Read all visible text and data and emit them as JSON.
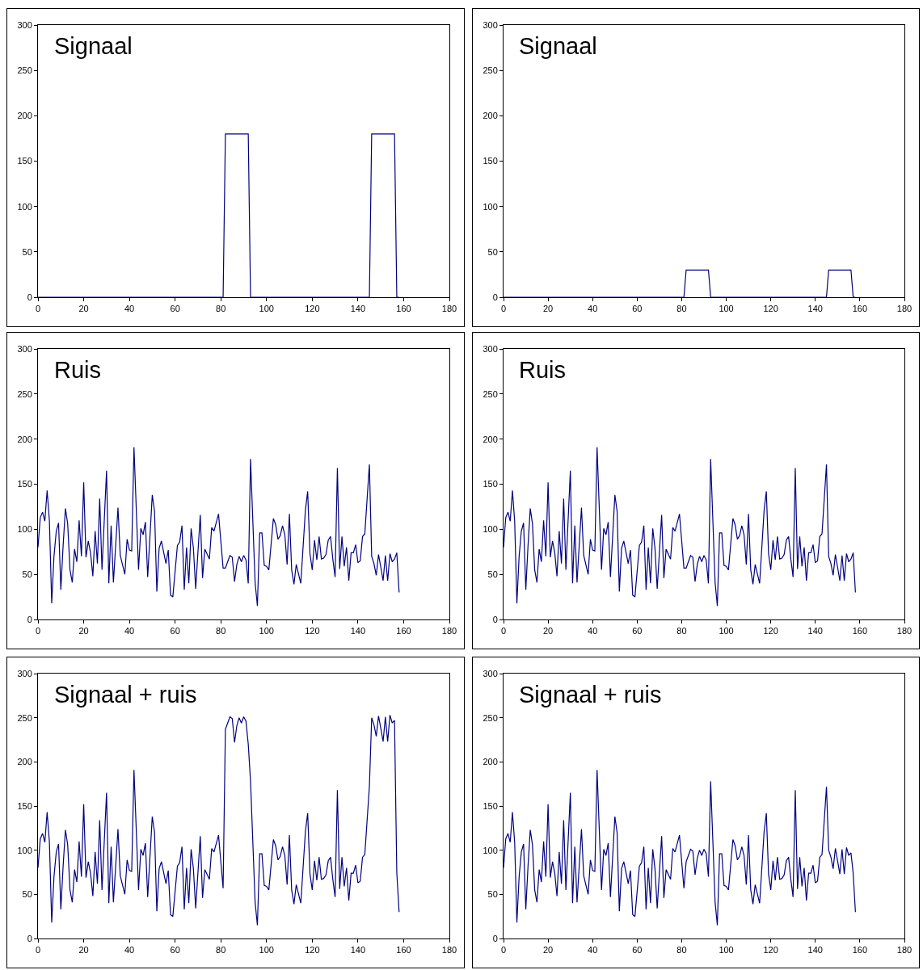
{
  "chart_data": [
    {
      "type": "line",
      "title": "Signaal",
      "color": "#000080",
      "marker": "none",
      "line_style": "solid",
      "grid": false,
      "xlim": [
        0,
        180
      ],
      "xticks": [
        0,
        20,
        40,
        60,
        80,
        100,
        120,
        140,
        160,
        180
      ],
      "ylim": [
        0,
        300
      ],
      "yticks": [
        0,
        50,
        100,
        150,
        200,
        250,
        300
      ],
      "x": [
        0,
        81,
        82,
        92,
        93,
        145,
        146,
        156,
        157,
        158
      ],
      "values": [
        0,
        0,
        180,
        180,
        0,
        0,
        180,
        180,
        0,
        0
      ]
    },
    {
      "type": "line",
      "title": "Signaal",
      "color": "#000080",
      "marker": "none",
      "line_style": "solid",
      "grid": false,
      "xlim": [
        0,
        180
      ],
      "xticks": [
        0,
        20,
        40,
        60,
        80,
        100,
        120,
        140,
        160,
        180
      ],
      "ylim": [
        0,
        300
      ],
      "yticks": [
        0,
        50,
        100,
        150,
        200,
        250,
        300
      ],
      "x": [
        0,
        81,
        82,
        92,
        93,
        145,
        146,
        156,
        157,
        158
      ],
      "values": [
        0,
        0,
        30,
        30,
        0,
        0,
        30,
        30,
        0,
        0
      ]
    },
    {
      "type": "line",
      "title": "Ruis",
      "color": "#000080",
      "marker": "none",
      "line_style": "solid",
      "grid": false,
      "xlim": [
        0,
        180
      ],
      "xticks": [
        0,
        20,
        40,
        60,
        80,
        100,
        120,
        140,
        160,
        180
      ],
      "ylim": [
        0,
        300
      ],
      "yticks": [
        0,
        50,
        100,
        150,
        200,
        250,
        300
      ],
      "x": [
        0,
        1,
        2,
        3,
        4,
        5,
        6,
        7,
        8,
        9,
        10,
        11,
        12,
        13,
        14,
        15,
        16,
        17,
        18,
        19,
        20,
        21,
        22,
        23,
        24,
        25,
        26,
        27,
        28,
        30,
        31,
        32,
        33,
        35,
        36,
        38,
        39,
        40,
        41,
        42,
        44,
        45,
        46,
        47,
        48,
        50,
        51,
        52,
        53,
        54,
        56,
        57,
        58,
        59,
        61,
        62,
        63,
        64,
        65,
        66,
        67,
        68,
        69,
        71,
        72,
        73,
        75,
        76,
        77,
        79,
        81,
        82,
        83,
        84,
        85,
        86,
        87,
        88,
        89,
        90,
        91,
        92,
        93,
        95,
        96,
        97,
        98,
        99,
        100,
        101,
        103,
        104,
        105,
        106,
        107,
        108,
        109,
        110,
        111,
        112,
        113,
        115,
        117,
        118,
        119,
        120,
        121,
        122,
        123,
        124,
        125,
        126,
        127,
        128,
        129,
        130,
        131,
        132,
        133,
        134,
        135,
        136,
        137,
        138,
        139,
        140,
        141,
        142,
        143,
        145,
        146,
        147,
        148,
        149,
        150,
        151,
        152,
        153,
        154,
        155,
        156,
        157,
        158
      ],
      "values": [
        80,
        113,
        119,
        109,
        143,
        109,
        18,
        70,
        98,
        107,
        33,
        82,
        123,
        106,
        55,
        41,
        78,
        64,
        110,
        70,
        152,
        69,
        87,
        74,
        48,
        98,
        62,
        134,
        55,
        165,
        40,
        104,
        41,
        124,
        71,
        50,
        89,
        77,
        76,
        191,
        55,
        101,
        94,
        108,
        47,
        138,
        120,
        31,
        79,
        87,
        62,
        77,
        27,
        25,
        82,
        86,
        104,
        33,
        80,
        40,
        101,
        79,
        34,
        116,
        46,
        78,
        67,
        102,
        98,
        117,
        57,
        57,
        64,
        71,
        69,
        42,
        61,
        70,
        64,
        71,
        66,
        40,
        178,
        41,
        15,
        96,
        96,
        60,
        59,
        55,
        112,
        105,
        89,
        93,
        104,
        94,
        61,
        117,
        55,
        39,
        61,
        40,
        121,
        142,
        73,
        55,
        88,
        66,
        92,
        67,
        68,
        72,
        88,
        92,
        67,
        47,
        168,
        56,
        92,
        59,
        80,
        43,
        74,
        74,
        83,
        63,
        65,
        92,
        95,
        172,
        70,
        62,
        49,
        72,
        58,
        43,
        71,
        43,
        73,
        64,
        67,
        74,
        30
      ]
    },
    {
      "type": "line",
      "title": "Ruis",
      "color": "#000080",
      "marker": "none",
      "line_style": "solid",
      "grid": false,
      "xlim": [
        0,
        180
      ],
      "xticks": [
        0,
        20,
        40,
        60,
        80,
        100,
        120,
        140,
        160,
        180
      ],
      "ylim": [
        0,
        300
      ],
      "yticks": [
        0,
        50,
        100,
        150,
        200,
        250,
        300
      ],
      "x": [
        0,
        1,
        2,
        3,
        4,
        5,
        6,
        7,
        8,
        9,
        10,
        11,
        12,
        13,
        14,
        15,
        16,
        17,
        18,
        19,
        20,
        21,
        22,
        23,
        24,
        25,
        26,
        27,
        28,
        30,
        31,
        32,
        33,
        35,
        36,
        38,
        39,
        40,
        41,
        42,
        44,
        45,
        46,
        47,
        48,
        50,
        51,
        52,
        53,
        54,
        56,
        57,
        58,
        59,
        61,
        62,
        63,
        64,
        65,
        66,
        67,
        68,
        69,
        71,
        72,
        73,
        75,
        76,
        77,
        79,
        81,
        82,
        83,
        84,
        85,
        86,
        87,
        88,
        89,
        90,
        91,
        92,
        93,
        95,
        96,
        97,
        98,
        99,
        100,
        101,
        103,
        104,
        105,
        106,
        107,
        108,
        109,
        110,
        111,
        112,
        113,
        115,
        117,
        118,
        119,
        120,
        121,
        122,
        123,
        124,
        125,
        126,
        127,
        128,
        129,
        130,
        131,
        132,
        133,
        134,
        135,
        136,
        137,
        138,
        139,
        140,
        141,
        142,
        143,
        145,
        146,
        147,
        148,
        149,
        150,
        151,
        152,
        153,
        154,
        155,
        156,
        157,
        158
      ],
      "values": [
        80,
        113,
        119,
        109,
        143,
        109,
        18,
        70,
        98,
        107,
        33,
        82,
        123,
        106,
        55,
        41,
        78,
        64,
        110,
        70,
        152,
        69,
        87,
        74,
        48,
        98,
        62,
        134,
        55,
        165,
        40,
        104,
        41,
        124,
        71,
        50,
        89,
        77,
        76,
        191,
        55,
        101,
        94,
        108,
        47,
        138,
        120,
        31,
        79,
        87,
        62,
        77,
        27,
        25,
        82,
        86,
        104,
        33,
        80,
        40,
        101,
        79,
        34,
        116,
        46,
        78,
        67,
        102,
        98,
        117,
        57,
        57,
        64,
        71,
        69,
        42,
        61,
        70,
        64,
        71,
        66,
        40,
        178,
        41,
        15,
        96,
        96,
        60,
        59,
        55,
        112,
        105,
        89,
        93,
        104,
        94,
        61,
        117,
        55,
        39,
        61,
        40,
        121,
        142,
        73,
        55,
        88,
        66,
        92,
        67,
        68,
        72,
        88,
        92,
        67,
        47,
        168,
        56,
        92,
        59,
        80,
        43,
        74,
        74,
        83,
        63,
        65,
        92,
        95,
        172,
        70,
        62,
        49,
        72,
        58,
        43,
        71,
        43,
        73,
        64,
        67,
        74,
        30
      ]
    },
    {
      "type": "line",
      "title": "Signaal + ruis",
      "color": "#000080",
      "marker": "none",
      "line_style": "solid",
      "grid": false,
      "xlim": [
        0,
        180
      ],
      "xticks": [
        0,
        20,
        40,
        60,
        80,
        100,
        120,
        140,
        160,
        180
      ],
      "ylim": [
        0,
        300
      ],
      "yticks": [
        0,
        50,
        100,
        150,
        200,
        250,
        300
      ],
      "x": [
        0,
        1,
        2,
        3,
        4,
        5,
        6,
        7,
        8,
        9,
        10,
        11,
        12,
        13,
        14,
        15,
        16,
        17,
        18,
        19,
        20,
        21,
        22,
        23,
        24,
        25,
        26,
        27,
        28,
        30,
        31,
        32,
        33,
        35,
        36,
        38,
        39,
        40,
        41,
        42,
        44,
        45,
        46,
        47,
        48,
        50,
        51,
        52,
        53,
        54,
        56,
        57,
        58,
        59,
        61,
        62,
        63,
        64,
        65,
        66,
        67,
        68,
        69,
        71,
        72,
        73,
        75,
        76,
        77,
        79,
        81,
        82,
        83,
        84,
        85,
        86,
        87,
        88,
        89,
        90,
        91,
        92,
        93,
        95,
        96,
        97,
        98,
        99,
        100,
        101,
        103,
        104,
        105,
        106,
        107,
        108,
        109,
        110,
        111,
        112,
        113,
        115,
        117,
        118,
        119,
        120,
        121,
        122,
        123,
        124,
        125,
        126,
        127,
        128,
        129,
        130,
        131,
        132,
        133,
        134,
        135,
        136,
        137,
        138,
        139,
        140,
        141,
        142,
        143,
        145,
        146,
        147,
        148,
        149,
        150,
        151,
        152,
        153,
        154,
        155,
        156,
        157,
        158
      ],
      "values": [
        80,
        113,
        119,
        109,
        143,
        109,
        18,
        70,
        98,
        107,
        33,
        82,
        123,
        106,
        55,
        41,
        78,
        64,
        110,
        70,
        152,
        69,
        87,
        74,
        48,
        98,
        62,
        134,
        55,
        165,
        40,
        104,
        41,
        124,
        71,
        50,
        89,
        77,
        76,
        191,
        55,
        101,
        94,
        108,
        47,
        138,
        120,
        31,
        79,
        87,
        62,
        77,
        27,
        25,
        82,
        86,
        104,
        33,
        80,
        40,
        101,
        79,
        34,
        116,
        46,
        78,
        67,
        102,
        98,
        117,
        57,
        237,
        244,
        251,
        249,
        222,
        241,
        250,
        244,
        251,
        246,
        220,
        178,
        41,
        15,
        96,
        96,
        60,
        59,
        55,
        112,
        105,
        89,
        93,
        104,
        94,
        61,
        117,
        55,
        39,
        61,
        40,
        121,
        142,
        73,
        55,
        88,
        66,
        92,
        67,
        68,
        72,
        88,
        92,
        67,
        47,
        168,
        56,
        92,
        59,
        80,
        43,
        74,
        74,
        83,
        63,
        65,
        92,
        95,
        172,
        250,
        242,
        229,
        252,
        238,
        223,
        251,
        223,
        253,
        244,
        247,
        74,
        30
      ]
    },
    {
      "type": "line",
      "title": "Signaal + ruis",
      "color": "#000080",
      "marker": "none",
      "line_style": "solid",
      "grid": false,
      "xlim": [
        0,
        180
      ],
      "xticks": [
        0,
        20,
        40,
        60,
        80,
        100,
        120,
        140,
        160,
        180
      ],
      "ylim": [
        0,
        300
      ],
      "yticks": [
        0,
        50,
        100,
        150,
        200,
        250,
        300
      ],
      "x": [
        0,
        1,
        2,
        3,
        4,
        5,
        6,
        7,
        8,
        9,
        10,
        11,
        12,
        13,
        14,
        15,
        16,
        17,
        18,
        19,
        20,
        21,
        22,
        23,
        24,
        25,
        26,
        27,
        28,
        30,
        31,
        32,
        33,
        35,
        36,
        38,
        39,
        40,
        41,
        42,
        44,
        45,
        46,
        47,
        48,
        50,
        51,
        52,
        53,
        54,
        56,
        57,
        58,
        59,
        61,
        62,
        63,
        64,
        65,
        66,
        67,
        68,
        69,
        71,
        72,
        73,
        75,
        76,
        77,
        79,
        81,
        82,
        83,
        84,
        85,
        86,
        87,
        88,
        89,
        90,
        91,
        92,
        93,
        95,
        96,
        97,
        98,
        99,
        100,
        101,
        103,
        104,
        105,
        106,
        107,
        108,
        109,
        110,
        111,
        112,
        113,
        115,
        117,
        118,
        119,
        120,
        121,
        122,
        123,
        124,
        125,
        126,
        127,
        128,
        129,
        130,
        131,
        132,
        133,
        134,
        135,
        136,
        137,
        138,
        139,
        140,
        141,
        142,
        143,
        145,
        146,
        147,
        148,
        149,
        150,
        151,
        152,
        153,
        154,
        155,
        156,
        157,
        158
      ],
      "values": [
        80,
        113,
        119,
        109,
        143,
        109,
        18,
        70,
        98,
        107,
        33,
        82,
        123,
        106,
        55,
        41,
        78,
        64,
        110,
        70,
        152,
        69,
        87,
        74,
        48,
        98,
        62,
        134,
        55,
        165,
        40,
        104,
        41,
        124,
        71,
        50,
        89,
        77,
        76,
        191,
        55,
        101,
        94,
        108,
        47,
        138,
        120,
        31,
        79,
        87,
        62,
        77,
        27,
        25,
        82,
        86,
        104,
        33,
        80,
        40,
        101,
        79,
        34,
        116,
        46,
        78,
        67,
        102,
        98,
        117,
        57,
        87,
        94,
        101,
        99,
        72,
        91,
        100,
        94,
        101,
        96,
        70,
        178,
        41,
        15,
        96,
        96,
        60,
        59,
        55,
        112,
        105,
        89,
        93,
        104,
        94,
        61,
        117,
        55,
        39,
        61,
        40,
        121,
        142,
        73,
        55,
        88,
        66,
        92,
        67,
        68,
        72,
        88,
        92,
        67,
        47,
        168,
        56,
        92,
        59,
        80,
        43,
        74,
        74,
        83,
        63,
        65,
        92,
        95,
        172,
        100,
        92,
        79,
        102,
        88,
        73,
        101,
        73,
        103,
        94,
        97,
        74,
        30
      ]
    }
  ]
}
